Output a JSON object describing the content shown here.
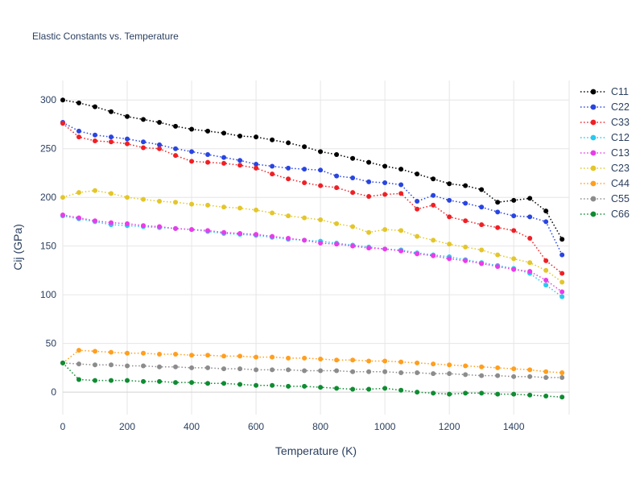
{
  "title": "Elastic Constants vs. Temperature",
  "colors": {
    "background": "#ffffff",
    "text": "#2a3f5f",
    "grid": "#e6e6e6",
    "zeroline": "#d2d2d2"
  },
  "chart_data": {
    "type": "line",
    "title": "Elastic Constants vs. Temperature",
    "xlabel": "Temperature (K)",
    "ylabel": "Cij (GPa)",
    "line_style": "dotted",
    "marker": "circle",
    "grid": true,
    "legend_position": "right-outside",
    "xlim": [
      0,
      1572
    ],
    "ylim": [
      -23,
      320
    ],
    "x_ticks": [
      0,
      200,
      400,
      600,
      800,
      1000,
      1200,
      1400
    ],
    "y_ticks": [
      0,
      50,
      100,
      150,
      200,
      250,
      300
    ],
    "x": [
      0,
      50,
      100,
      150,
      200,
      250,
      300,
      350,
      400,
      450,
      500,
      550,
      600,
      650,
      700,
      750,
      800,
      850,
      900,
      950,
      1000,
      1050,
      1100,
      1150,
      1200,
      1250,
      1300,
      1350,
      1400,
      1450,
      1500,
      1550
    ],
    "series": [
      {
        "name": "C11",
        "color": "#000000",
        "values": [
          300,
          297,
          293,
          288,
          283,
          280,
          277,
          273,
          270,
          268,
          266,
          263,
          262,
          259,
          256,
          252,
          247,
          244,
          240,
          236,
          232,
          229,
          224,
          219,
          214,
          212,
          208,
          195,
          197,
          199,
          186,
          157
        ]
      },
      {
        "name": "C22",
        "color": "#2945e0",
        "values": [
          277,
          268,
          264,
          262,
          260,
          257,
          254,
          250,
          247,
          244,
          241,
          238,
          234,
          232,
          230,
          229,
          228,
          222,
          220,
          216,
          215,
          213,
          196,
          202,
          197,
          194,
          190,
          185,
          181,
          180,
          175,
          141
        ]
      },
      {
        "name": "C33",
        "color": "#ef2025",
        "values": [
          276,
          262,
          258,
          257,
          255,
          251,
          250,
          243,
          237,
          236,
          235,
          233,
          230,
          224,
          219,
          215,
          212,
          210,
          205,
          201,
          203,
          204,
          188,
          192,
          180,
          176,
          172,
          169,
          166,
          158,
          135,
          122
        ]
      },
      {
        "name": "C12",
        "color": "#29c8f0",
        "values": [
          181,
          178,
          175,
          172,
          171,
          170,
          169,
          168,
          167,
          165,
          163,
          162,
          161,
          159,
          157,
          156,
          155,
          153,
          151,
          149,
          147,
          146,
          143,
          141,
          139,
          136,
          133,
          130,
          127,
          122,
          110,
          98
        ]
      },
      {
        "name": "C13",
        "color": "#e93ce9",
        "values": [
          182,
          179,
          176,
          174,
          173,
          171,
          170,
          168,
          167,
          166,
          164,
          163,
          162,
          160,
          158,
          156,
          153,
          152,
          150,
          148,
          147,
          145,
          142,
          140,
          137,
          135,
          132,
          129,
          126,
          124,
          115,
          103
        ]
      },
      {
        "name": "C23",
        "color": "#e3c62a",
        "values": [
          200,
          205,
          207,
          204,
          200,
          198,
          196,
          195,
          193,
          192,
          190,
          189,
          187,
          184,
          181,
          179,
          177,
          173,
          170,
          164,
          167,
          166,
          160,
          156,
          152,
          149,
          146,
          141,
          137,
          133,
          125,
          113
        ]
      },
      {
        "name": "C44",
        "color": "#ff9f1f",
        "values": [
          30,
          43,
          42,
          41,
          40,
          40,
          39,
          39,
          38,
          38,
          37,
          37,
          36,
          36,
          35,
          35,
          34,
          33,
          33,
          32,
          32,
          31,
          30,
          29,
          28,
          27,
          26,
          25,
          24,
          23,
          21,
          20
        ]
      },
      {
        "name": "C55",
        "color": "#8c8c8c",
        "values": [
          30,
          29,
          28,
          28,
          27,
          27,
          26,
          26,
          25,
          25,
          24,
          24,
          23,
          23,
          23,
          22,
          22,
          22,
          21,
          21,
          21,
          20,
          20,
          19,
          19,
          18,
          17,
          17,
          16,
          16,
          15,
          15
        ]
      },
      {
        "name": "C66",
        "color": "#0f8c32",
        "values": [
          30,
          13,
          12,
          12,
          12,
          11,
          11,
          10,
          10,
          9,
          9,
          8,
          7,
          7,
          6,
          6,
          5,
          4,
          3,
          3,
          4,
          2,
          0,
          -1,
          -2,
          -1,
          -1,
          -2,
          -2,
          -3,
          -4,
          -5
        ]
      }
    ]
  }
}
